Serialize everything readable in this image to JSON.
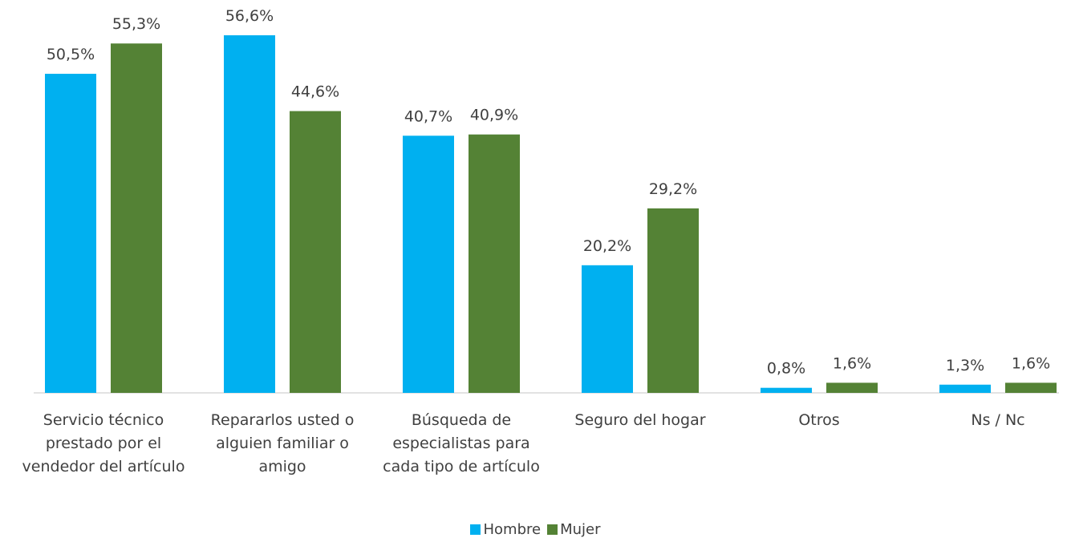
{
  "chart_data": {
    "type": "bar",
    "categories": [
      "Servicio técnico prestado por el vendedor del artículo",
      "Repararlos usted o alguien familiar o amigo",
      "Búsqueda de especialistas para cada tipo de artículo",
      "Seguro del hogar",
      "Otros",
      "Ns / Nc"
    ],
    "series": [
      {
        "name": "Hombre",
        "color": "#00b0f0",
        "values": [
          50.5,
          56.6,
          40.7,
          20.2,
          0.8,
          1.3
        ],
        "value_labels": [
          "50,5%",
          "56,6%",
          "40,7%",
          "20,2%",
          "0,8%",
          "1,3%"
        ]
      },
      {
        "name": "Mujer",
        "color": "#548235",
        "values": [
          55.3,
          44.6,
          40.9,
          29.2,
          1.6,
          1.6
        ],
        "value_labels": [
          "55,3%",
          "44,6%",
          "40,9%",
          "29,2%",
          "1,6%",
          "1,6%"
        ]
      }
    ],
    "ylim": [
      0,
      60
    ],
    "grid": false,
    "legend": "bottom"
  }
}
